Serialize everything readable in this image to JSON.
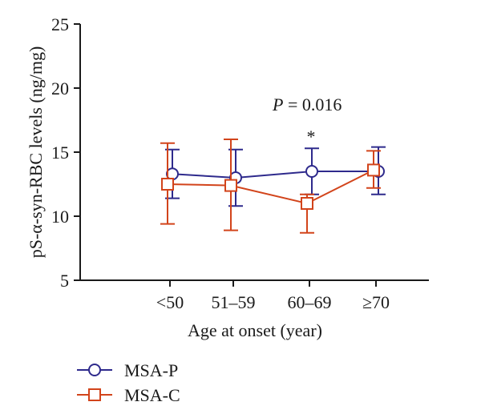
{
  "chart_data": {
    "type": "line",
    "categories": [
      "<50",
      "51–59",
      "60–69",
      "≥70"
    ],
    "xlabel": "Age at onset (year)",
    "ylabel": "pS-α-syn-RBC levels (ng/mg)",
    "ylim": [
      5,
      25
    ],
    "yticks": [
      "5",
      "10",
      "15",
      "20",
      "25"
    ],
    "grid": false,
    "legend_position": "bottom-left",
    "annotations": {
      "p_prefix": "P",
      "p_rest": " = 0.016",
      "star": "*",
      "star_category": "60–69"
    },
    "series": [
      {
        "name": "MSA-P",
        "marker": "circle",
        "color": "#2e2a8c",
        "values": [
          13.3,
          13.0,
          13.5,
          13.5
        ],
        "err_low": [
          11.4,
          10.8,
          11.7,
          11.7
        ],
        "err_high": [
          15.2,
          15.2,
          15.3,
          15.4
        ]
      },
      {
        "name": "MSA-C",
        "marker": "square",
        "color": "#d2441b",
        "values": [
          12.5,
          12.4,
          11.0,
          13.6
        ],
        "err_low": [
          9.4,
          8.9,
          8.7,
          12.2
        ],
        "err_high": [
          15.7,
          16.0,
          11.7,
          15.1
        ]
      }
    ]
  }
}
